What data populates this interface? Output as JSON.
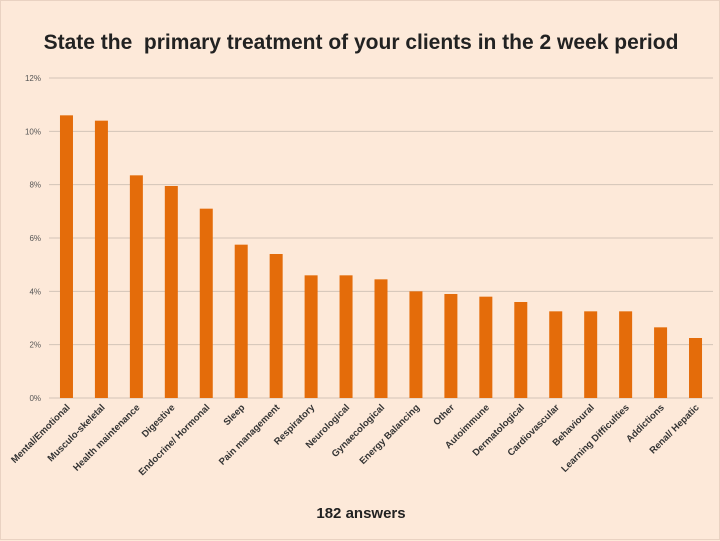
{
  "chart_data": {
    "type": "bar",
    "title": "State the  primary treatment of your clients in the 2 week period",
    "footer": "182 answers",
    "xlabel": "",
    "ylabel": "",
    "ylim": [
      0,
      12
    ],
    "yticks": [
      "0%",
      "2%",
      "4%",
      "6%",
      "8%",
      "10%",
      "12%"
    ],
    "grid": true,
    "bar_color": "#e46c0a",
    "categories": [
      "Mental/Emotional",
      "Musculo-skeletal",
      "Health maintenance",
      "Digestive",
      "Endocrine/ Hormonal",
      "Sleep",
      "Pain management",
      "Respiratory",
      "Neurological",
      "Gynaecological",
      "Energy Balancing",
      "Other",
      "Autoimmune",
      "Dermatological",
      "Cardiovascular",
      "Behavioural",
      "Learning Difficulties",
      "Addictions",
      "Renal/ Hepatic"
    ],
    "values": [
      10.6,
      10.4,
      8.35,
      7.95,
      7.1,
      5.75,
      5.4,
      4.6,
      4.6,
      4.45,
      4.0,
      3.9,
      3.8,
      3.6,
      3.25,
      3.25,
      3.25,
      2.65,
      2.25
    ]
  }
}
